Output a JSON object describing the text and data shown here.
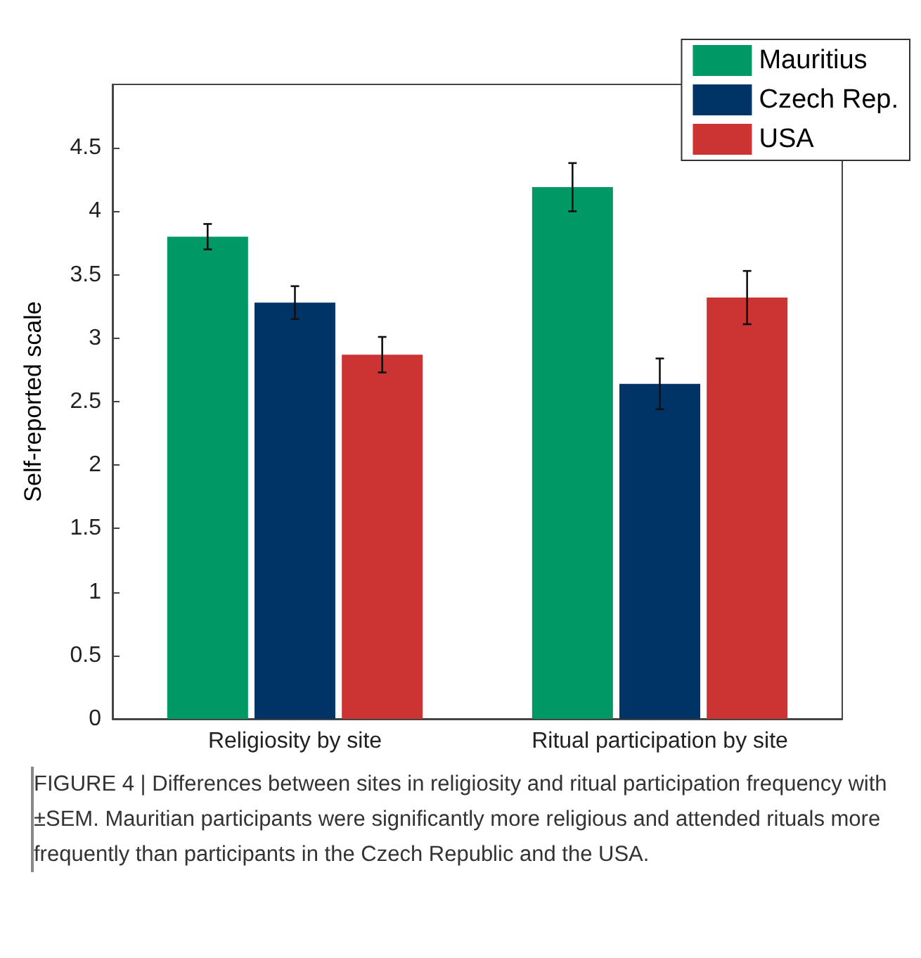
{
  "chart_data": {
    "type": "bar",
    "ylabel": "Self-reported scale",
    "categories": [
      "Religiosity by site",
      "Ritual participation by site"
    ],
    "series": [
      {
        "name": "Mauritius",
        "color": "#009966",
        "values": [
          3.8,
          4.19
        ],
        "errors": [
          0.1,
          0.19
        ]
      },
      {
        "name": "Czech Rep.",
        "color": "#003366",
        "values": [
          3.28,
          2.64
        ],
        "errors": [
          0.13,
          0.2
        ]
      },
      {
        "name": "USA",
        "color": "#cc3333",
        "values": [
          2.87,
          3.32
        ],
        "errors": [
          0.14,
          0.21
        ]
      }
    ],
    "ylim": [
      0,
      5
    ],
    "yticks": [
      0,
      0.5,
      1,
      1.5,
      2,
      2.5,
      3,
      3.5,
      4,
      4.5
    ],
    "grid": false,
    "legend": "top right",
    "annotations": [
      "FIGURE 4 | Differences between sites in religiosity and ritual participation frequency with ±SEM. Mauritian participants were significantly more religious and attended rituals more frequently than participants in the Czech Republic and the USA."
    ]
  }
}
